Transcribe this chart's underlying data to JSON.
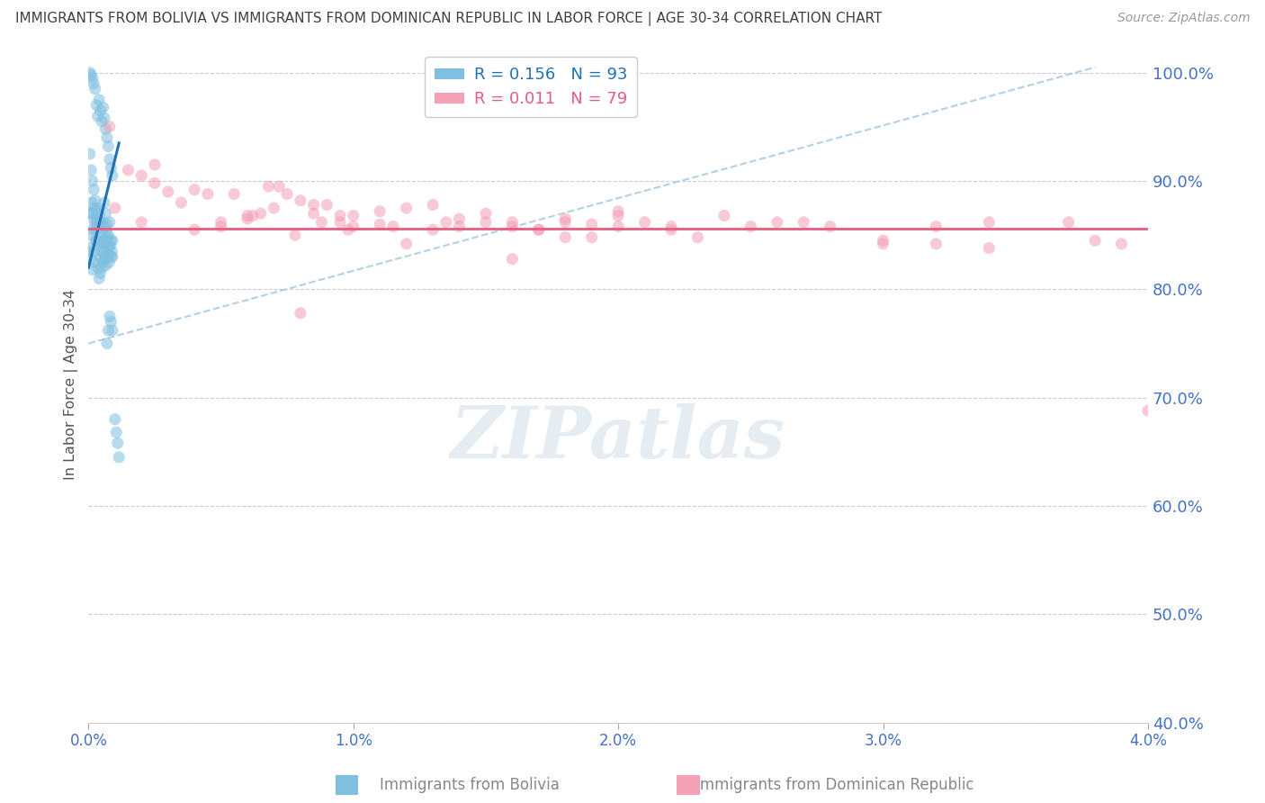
{
  "title": "IMMIGRANTS FROM BOLIVIA VS IMMIGRANTS FROM DOMINICAN REPUBLIC IN LABOR FORCE | AGE 30-34 CORRELATION CHART",
  "source": "Source: ZipAtlas.com",
  "xlabel_bolivia": "Immigrants from Bolivia",
  "xlabel_dr": "Immigrants from Dominican Republic",
  "ylabel": "In Labor Force | Age 30-34",
  "bolivia_R": 0.156,
  "bolivia_N": 93,
  "dr_R": 0.011,
  "dr_N": 79,
  "bolivia_color": "#7fbfdf",
  "dr_color": "#f4a0b5",
  "bolivia_line_color": "#2171b5",
  "dr_line_color": "#e85c80",
  "dashed_line_color": "#a8c8e0",
  "background_color": "#ffffff",
  "grid_color": "#c8c8c8",
  "axis_label_color": "#4472c4",
  "title_color": "#404040",
  "xmin": 0.0,
  "xmax": 0.04,
  "ymin": 0.4,
  "ymax": 1.025,
  "yticks": [
    0.4,
    0.5,
    0.6,
    0.7,
    0.8,
    0.9,
    1.0
  ],
  "ytick_labels": [
    "40.0%",
    "50.0%",
    "60.0%",
    "70.0%",
    "80.0%",
    "90.0%",
    "100.0%"
  ],
  "xticks": [
    0.0,
    0.01,
    0.02,
    0.03,
    0.04
  ],
  "xtick_labels": [
    "0.0%",
    "1.0%",
    "2.0%",
    "3.0%",
    "4.0%"
  ],
  "bolivia_x": [
    5e-05,
    8e-05,
    0.0001,
    0.00012,
    0.00015,
    0.00018,
    0.0002,
    0.00022,
    0.00025,
    0.00028,
    0.0003,
    0.00032,
    0.00035,
    0.00038,
    0.0004,
    0.00042,
    0.00045,
    0.00048,
    0.0005,
    0.00052,
    0.00055,
    0.00058,
    0.0006,
    0.00062,
    0.00065,
    0.00068,
    0.0007,
    0.00072,
    0.00075,
    0.00078,
    0.0008,
    0.00082,
    0.00085,
    0.00088,
    0.0009,
    5e-05,
    0.0001,
    0.00015,
    0.0002,
    0.00025,
    0.0003,
    0.00035,
    0.0004,
    0.00045,
    0.0005,
    0.00055,
    0.0006,
    0.00065,
    0.0007,
    0.00075,
    0.0008,
    0.00085,
    0.0009,
    5e-05,
    0.0001,
    0.00015,
    0.0002,
    0.00025,
    0.0003,
    0.00035,
    0.0004,
    0.00045,
    0.0005,
    0.00055,
    0.0006,
    0.00065,
    0.0007,
    0.00075,
    0.0008,
    0.00085,
    0.0009,
    5e-05,
    0.0001,
    0.00015,
    0.0002,
    0.00025,
    0.0003,
    0.00035,
    0.0004,
    0.00045,
    0.0005,
    0.00055,
    0.0006,
    0.00065,
    0.0007,
    0.00075,
    0.0008,
    0.00085,
    0.0009,
    0.001,
    0.00105,
    0.0011,
    0.00115
  ],
  "bolivia_y": [
    0.835,
    0.85,
    0.87,
    0.88,
    0.87,
    0.855,
    0.865,
    0.875,
    0.86,
    0.845,
    0.855,
    0.865,
    0.875,
    0.84,
    0.848,
    0.858,
    0.83,
    0.843,
    0.862,
    0.835,
    0.845,
    0.835,
    0.828,
    0.858,
    0.845,
    0.855,
    0.838,
    0.848,
    0.832,
    0.825,
    0.862,
    0.84,
    0.845,
    0.835,
    0.83,
    1.0,
    0.998,
    0.995,
    0.99,
    0.985,
    0.97,
    0.96,
    0.975,
    0.965,
    0.955,
    0.968,
    0.958,
    0.948,
    0.94,
    0.932,
    0.92,
    0.912,
    0.905,
    0.925,
    0.91,
    0.9,
    0.892,
    0.882,
    0.872,
    0.862,
    0.87,
    0.862,
    0.855,
    0.845,
    0.88,
    0.87,
    0.86,
    0.85,
    0.84,
    0.83,
    0.845,
    0.838,
    0.828,
    0.818,
    0.825,
    0.835,
    0.845,
    0.82,
    0.81,
    0.815,
    0.82,
    0.825,
    0.83,
    0.822,
    0.75,
    0.762,
    0.775,
    0.77,
    0.762,
    0.68,
    0.668,
    0.658,
    0.645
  ],
  "dr_x": [
    0.0008,
    0.0015,
    0.002,
    0.0025,
    0.003,
    0.0035,
    0.004,
    0.0045,
    0.005,
    0.006,
    0.0065,
    0.007,
    0.0075,
    0.008,
    0.0085,
    0.009,
    0.0095,
    0.01,
    0.011,
    0.012,
    0.013,
    0.014,
    0.015,
    0.016,
    0.017,
    0.018,
    0.019,
    0.02,
    0.021,
    0.022,
    0.0055,
    0.0062,
    0.0068,
    0.0078,
    0.0088,
    0.0098,
    0.011,
    0.013,
    0.015,
    0.017,
    0.019,
    0.0025,
    0.005,
    0.0072,
    0.0085,
    0.0095,
    0.0115,
    0.0135,
    0.016,
    0.018,
    0.02,
    0.022,
    0.024,
    0.026,
    0.028,
    0.03,
    0.032,
    0.034,
    0.037,
    0.001,
    0.002,
    0.004,
    0.006,
    0.008,
    0.01,
    0.012,
    0.014,
    0.016,
    0.018,
    0.02,
    0.023,
    0.025,
    0.027,
    0.03,
    0.032,
    0.034,
    0.038,
    0.039,
    0.04
  ],
  "dr_y": [
    0.95,
    0.91,
    0.905,
    0.915,
    0.89,
    0.88,
    0.892,
    0.888,
    0.858,
    0.865,
    0.87,
    0.875,
    0.888,
    0.882,
    0.87,
    0.878,
    0.862,
    0.868,
    0.872,
    0.875,
    0.878,
    0.865,
    0.87,
    0.862,
    0.855,
    0.865,
    0.86,
    0.858,
    0.862,
    0.855,
    0.888,
    0.868,
    0.895,
    0.85,
    0.862,
    0.855,
    0.86,
    0.855,
    0.862,
    0.855,
    0.848,
    0.898,
    0.862,
    0.895,
    0.878,
    0.868,
    0.858,
    0.862,
    0.858,
    0.862,
    0.868,
    0.858,
    0.868,
    0.862,
    0.858,
    0.845,
    0.842,
    0.838,
    0.862,
    0.875,
    0.862,
    0.855,
    0.868,
    0.778,
    0.858,
    0.842,
    0.858,
    0.828,
    0.848,
    0.872,
    0.848,
    0.858,
    0.862,
    0.842,
    0.858,
    0.862,
    0.845,
    0.842,
    0.688
  ],
  "watermark_text": "ZIPatlas",
  "bolivia_trend_x0": 0.0,
  "bolivia_trend_x1": 0.00115,
  "bolivia_trend_y0": 0.82,
  "bolivia_trend_y1": 0.935,
  "dr_trend_y": 0.856,
  "ref_line_x0": 0.0,
  "ref_line_x1": 0.038,
  "ref_line_y0": 0.75,
  "ref_line_y1": 1.005
}
